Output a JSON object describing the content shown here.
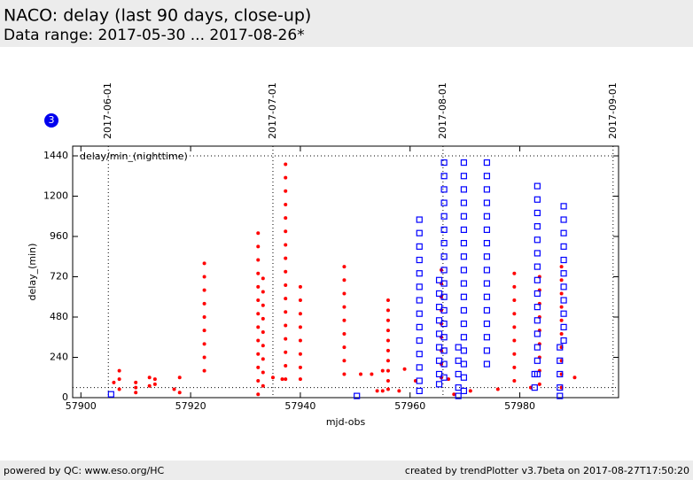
{
  "chart_data": {
    "type": "scatter",
    "title": "NACO: delay (last 90 days, close-up)",
    "subtitle": "Data range: 2017-05-30 ... 2017-08-26*",
    "annotation": "delay/min_(nighttime)",
    "badge": 3,
    "ylabel": "delay_(min)",
    "xlabel": "mjd-obs",
    "footer_left": "powered by QC: www.eso.org/HC",
    "footer_right": "created by trendPlotter v3.7beta on 2017-08-27T17:50:20",
    "xlim": [
      57898.5,
      57998
    ],
    "ylim": [
      0,
      1498
    ],
    "xticks": [
      57900,
      57920,
      57940,
      57960,
      57980
    ],
    "yticks": [
      0,
      240,
      480,
      720,
      960,
      1200,
      1440
    ],
    "ref_lines": [
      1440,
      60
    ],
    "date_markers": [
      {
        "x": 57905,
        "label": "2017-06-01"
      },
      {
        "x": 57935,
        "label": "2017-07-01"
      },
      {
        "x": 57966,
        "label": "2017-08-01"
      },
      {
        "x": 57997,
        "label": "2017-09-01"
      }
    ],
    "series": [
      {
        "color": "#ff0000",
        "marker": "dot",
        "x": [
          57906,
          57907,
          57907,
          57907,
          57910,
          57910,
          57910,
          57912.5,
          57912.5,
          57913.5,
          57913.5,
          57917,
          57918,
          57918,
          57922.5,
          57922.5,
          57922.5,
          57922.5,
          57922.5,
          57922.5,
          57922.5,
          57922.5,
          57922.5,
          57932.3,
          57932.3,
          57932.3,
          57932.3,
          57932.3,
          57932.3,
          57932.3,
          57932.3,
          57932.3,
          57932.3,
          57932.3,
          57932.3,
          57932.3,
          57933.2,
          57933.2,
          57933.2,
          57933.2,
          57933.2,
          57933.2,
          57933.2,
          57933.2,
          57933.2,
          57935,
          57936.7,
          57937.3,
          57937.3,
          57937.3,
          57937.3,
          57937.3,
          57937.3,
          57937.3,
          57937.3,
          57937.3,
          57937.3,
          57937.3,
          57937.3,
          57937.3,
          57937.3,
          57937.3,
          57937.3,
          57937.3,
          57940,
          57940,
          57940,
          57940,
          57940,
          57940,
          57940,
          57940,
          57948,
          57948,
          57948,
          57948,
          57948,
          57948,
          57948,
          57948,
          57948,
          57951,
          57953,
          57954,
          57955,
          57955,
          57956,
          57956,
          57956,
          57956,
          57956,
          57956,
          57956,
          57956,
          57956,
          57956,
          57958,
          57959,
          57961,
          57965.7,
          57965.7,
          57965.7,
          57965.7,
          57965.7,
          57965.7,
          57965.7,
          57965.7,
          57965.7,
          57967,
          57968,
          57971,
          57976,
          57979,
          57979,
          57979,
          57979,
          57979,
          57979,
          57979,
          57979,
          57979,
          57982,
          57983.6,
          57983.6,
          57983.6,
          57983.6,
          57983.6,
          57983.6,
          57983.6,
          57983.6,
          57983.6,
          57987.6,
          57987.6,
          57987.6,
          57987.6,
          57987.6,
          57987.6,
          57987.6,
          57987.6,
          57987.6,
          57987.6,
          57990
        ],
        "values": [
          90,
          160,
          110,
          50,
          90,
          60,
          30,
          120,
          70,
          110,
          80,
          50,
          120,
          30,
          800,
          720,
          640,
          560,
          480,
          400,
          320,
          240,
          160,
          980,
          900,
          820,
          740,
          660,
          580,
          500,
          420,
          340,
          260,
          180,
          100,
          20,
          710,
          630,
          550,
          470,
          390,
          310,
          230,
          150,
          70,
          120,
          110,
          1390,
          1310,
          1230,
          1150,
          1070,
          990,
          910,
          830,
          750,
          670,
          590,
          510,
          430,
          350,
          270,
          190,
          110,
          660,
          580,
          500,
          420,
          340,
          260,
          180,
          110,
          780,
          700,
          620,
          540,
          460,
          380,
          300,
          220,
          140,
          140,
          140,
          40,
          160,
          40,
          580,
          520,
          460,
          400,
          340,
          280,
          220,
          160,
          100,
          50,
          40,
          170,
          100,
          760,
          680,
          600,
          520,
          440,
          360,
          280,
          200,
          120,
          110,
          20,
          40,
          50,
          740,
          660,
          580,
          500,
          420,
          340,
          260,
          180,
          100,
          60,
          720,
          640,
          560,
          480,
          400,
          320,
          240,
          160,
          80,
          780,
          700,
          620,
          540,
          460,
          380,
          300,
          220,
          140,
          60,
          120
        ]
      },
      {
        "color": "#0000ff",
        "marker": "square",
        "x": [
          57905.5,
          57950.3,
          57961.7,
          57961.7,
          57961.7,
          57961.7,
          57961.7,
          57961.7,
          57961.7,
          57961.7,
          57961.7,
          57961.7,
          57961.7,
          57961.7,
          57961.7,
          57961.7,
          57965.3,
          57965.3,
          57965.3,
          57965.3,
          57965.3,
          57965.3,
          57965.3,
          57965.3,
          57965.3,
          57966.2,
          57966.2,
          57966.2,
          57966.2,
          57966.2,
          57966.2,
          57966.2,
          57966.2,
          57966.2,
          57966.2,
          57966.2,
          57966.2,
          57966.2,
          57966.2,
          57966.2,
          57966.2,
          57966.2,
          57968.8,
          57968.8,
          57968.8,
          57968.8,
          57968.8,
          57969.8,
          57969.8,
          57969.8,
          57969.8,
          57969.8,
          57969.8,
          57969.8,
          57969.8,
          57969.8,
          57969.8,
          57969.8,
          57969.8,
          57969.8,
          57969.8,
          57969.8,
          57969.8,
          57969.8,
          57969.8,
          57974,
          57974,
          57974,
          57974,
          57974,
          57974,
          57974,
          57974,
          57974,
          57974,
          57974,
          57974,
          57974,
          57974,
          57974,
          57974,
          57982.7,
          57982.7,
          57983.2,
          57983.2,
          57983.2,
          57983.2,
          57983.2,
          57983.2,
          57983.2,
          57983.2,
          57983.2,
          57983.2,
          57983.2,
          57983.2,
          57983.2,
          57983.2,
          57983.2,
          57987.3,
          57987.3,
          57987.3,
          57987.3,
          57987.3,
          57988,
          57988,
          57988,
          57988,
          57988,
          57988,
          57988,
          57988,
          57988,
          57988,
          57988
        ],
        "values": [
          20,
          10,
          1060,
          980,
          900,
          820,
          740,
          660,
          580,
          500,
          420,
          340,
          260,
          180,
          100,
          40,
          700,
          620,
          540,
          460,
          380,
          300,
          220,
          140,
          80,
          1400,
          1320,
          1240,
          1160,
          1080,
          1000,
          920,
          840,
          760,
          680,
          600,
          520,
          440,
          360,
          280,
          200,
          120,
          300,
          220,
          140,
          60,
          10,
          1400,
          1320,
          1240,
          1160,
          1080,
          1000,
          920,
          840,
          760,
          680,
          600,
          520,
          440,
          360,
          280,
          200,
          120,
          40,
          1400,
          1320,
          1240,
          1160,
          1080,
          1000,
          920,
          840,
          760,
          680,
          600,
          520,
          440,
          360,
          280,
          200,
          140,
          60,
          1260,
          1180,
          1100,
          1020,
          940,
          860,
          780,
          700,
          620,
          540,
          460,
          380,
          300,
          220,
          140,
          300,
          220,
          140,
          60,
          10,
          1140,
          1060,
          980,
          900,
          820,
          740,
          660,
          580,
          500,
          420,
          340
        ]
      }
    ]
  }
}
